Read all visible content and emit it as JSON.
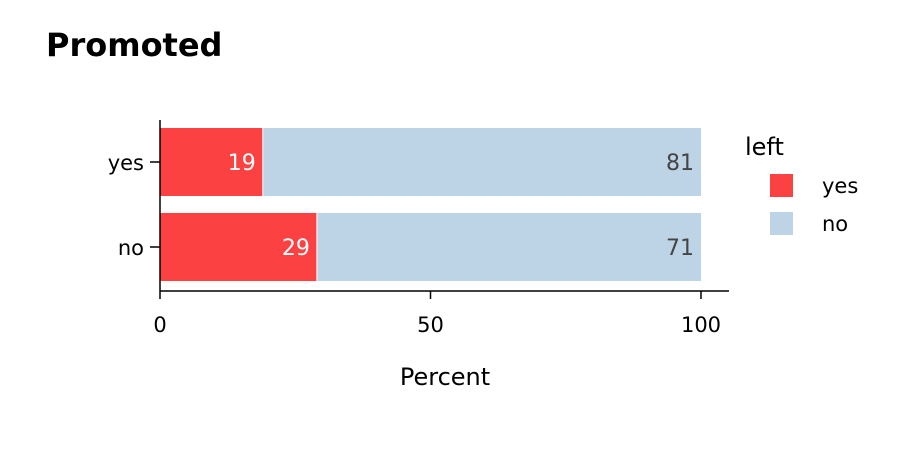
{
  "chart_data": {
    "type": "bar",
    "orientation": "horizontal",
    "stacked": true,
    "title": "Promoted",
    "xlabel": "Percent",
    "ylabel": "",
    "xlim": [
      0,
      105
    ],
    "x_ticks": [
      0,
      50,
      100
    ],
    "categories": [
      "yes",
      "no"
    ],
    "series": [
      {
        "name": "yes",
        "color": "#FC4143",
        "label_color": "#ffffff",
        "values": [
          19,
          29
        ]
      },
      {
        "name": "no",
        "color": "#BDD4E6",
        "label_color": "#444444",
        "values": [
          81,
          71
        ]
      }
    ],
    "legend": {
      "title": "left",
      "position": "right"
    },
    "grid": false
  }
}
